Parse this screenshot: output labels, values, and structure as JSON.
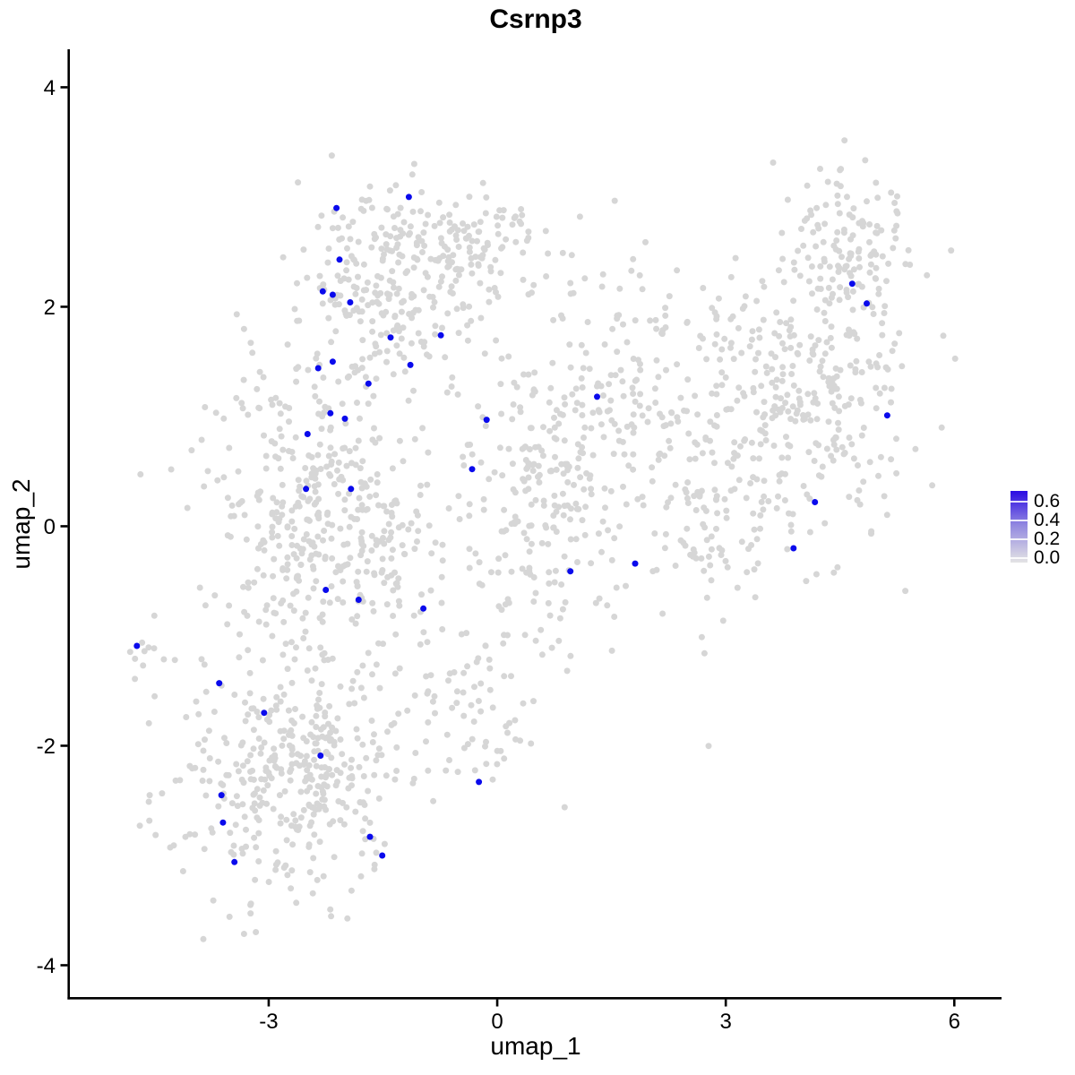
{
  "chart_data": {
    "type": "scatter",
    "title": "Csrnp3",
    "xlabel": "umap_1",
    "ylabel": "umap_2",
    "xlim": [
      -5.61,
      6.62
    ],
    "ylim": [
      -4.29,
      4.33
    ],
    "x_ticks": [
      -3,
      0,
      3,
      6
    ],
    "y_ticks": [
      -4,
      -2,
      0,
      2,
      4
    ],
    "grid": false,
    "legend": {
      "position": "right",
      "labels": [
        "0.6",
        "0.4",
        "0.2",
        "0.0"
      ],
      "values": [
        0.6,
        0.4,
        0.2,
        0.0
      ],
      "gradient_high": "#2B0BE3",
      "gradient_mid": "#9187E0",
      "gradient_low": "#E4E4E4"
    },
    "style": {
      "point_radius": 3.5,
      "gray_color": "#D6D6D6",
      "blue_color": "#0A0AEC",
      "axis_color": "#000000"
    },
    "series": [
      {
        "name": "expressing-cells",
        "color": "#0A0AEC",
        "points": [
          [
            -1.16,
            3.0
          ],
          [
            -2.11,
            2.9
          ],
          [
            -2.07,
            2.43
          ],
          [
            -2.29,
            2.14
          ],
          [
            -2.16,
            2.11
          ],
          [
            -1.93,
            2.04
          ],
          [
            -1.4,
            1.72
          ],
          [
            -0.74,
            1.74
          ],
          [
            -2.16,
            1.5
          ],
          [
            -2.35,
            1.44
          ],
          [
            -1.14,
            1.47
          ],
          [
            -1.69,
            1.3
          ],
          [
            -2.19,
            1.03
          ],
          [
            -2.0,
            0.98
          ],
          [
            -2.49,
            0.84
          ],
          [
            -0.14,
            0.97
          ],
          [
            -0.33,
            0.52
          ],
          [
            -2.51,
            0.34
          ],
          [
            -1.92,
            0.34
          ],
          [
            -2.25,
            -0.58
          ],
          [
            -1.82,
            -0.67
          ],
          [
            -0.97,
            -0.75
          ],
          [
            1.31,
            1.18
          ],
          [
            0.96,
            -0.41
          ],
          [
            1.81,
            -0.34
          ],
          [
            4.66,
            2.21
          ],
          [
            4.85,
            2.03
          ],
          [
            5.12,
            1.01
          ],
          [
            4.17,
            0.22
          ],
          [
            3.89,
            -0.2
          ],
          [
            -4.73,
            -1.09
          ],
          [
            -3.65,
            -1.43
          ],
          [
            -3.06,
            -1.7
          ],
          [
            -2.32,
            -2.09
          ],
          [
            -3.62,
            -2.45
          ],
          [
            -3.6,
            -2.7
          ],
          [
            -1.67,
            -2.83
          ],
          [
            -1.51,
            -3.0
          ],
          [
            -3.45,
            -3.06
          ],
          [
            -0.24,
            -2.33
          ]
        ]
      },
      {
        "name": "background-cells",
        "color": "#D6D6D6",
        "cluster_spec": {
          "seed": 20240607,
          "clusters": [
            {
              "cx": -2.9,
              "cy": -2.35,
              "sx": 0.72,
              "sy": 0.55,
              "n": 280
            },
            {
              "cx": -2.2,
              "cy": -2.0,
              "sx": 0.5,
              "sy": 0.5,
              "n": 110
            },
            {
              "cx": -4.65,
              "cy": -1.22,
              "sx": 0.12,
              "sy": 0.14,
              "n": 9
            },
            {
              "cx": -2.6,
              "cy": 0.2,
              "sx": 0.62,
              "sy": 0.7,
              "n": 300
            },
            {
              "cx": -1.6,
              "cy": -0.1,
              "sx": 0.5,
              "sy": 0.6,
              "n": 130
            },
            {
              "cx": -1.5,
              "cy": 2.1,
              "sx": 0.6,
              "sy": 0.42,
              "n": 190
            },
            {
              "cx": -0.4,
              "cy": 2.5,
              "sx": 0.55,
              "sy": 0.33,
              "n": 105
            },
            {
              "cx": 0.4,
              "cy": 0.3,
              "sx": 0.55,
              "sy": 0.8,
              "n": 170
            },
            {
              "cx": 1.1,
              "cy": 0.6,
              "sx": 0.6,
              "sy": 0.8,
              "n": 110
            },
            {
              "cx": 1.8,
              "cy": 1.4,
              "sx": 0.6,
              "sy": 0.55,
              "n": 85
            },
            {
              "cx": 2.7,
              "cy": 0.3,
              "sx": 0.5,
              "sy": 0.65,
              "n": 110
            },
            {
              "cx": 3.3,
              "cy": 1.2,
              "sx": 0.45,
              "sy": 0.6,
              "n": 85
            },
            {
              "cx": 4.3,
              "cy": 1.2,
              "sx": 0.55,
              "sy": 0.75,
              "n": 240
            },
            {
              "cx": 4.6,
              "cy": 2.55,
              "sx": 0.38,
              "sy": 0.3,
              "n": 105
            },
            {
              "cx": -0.35,
              "cy": -1.6,
              "sx": 0.45,
              "sy": 0.5,
              "n": 65
            },
            {
              "cx": -1.3,
              "cy": 2.75,
              "sx": 0.5,
              "sy": 0.2,
              "n": 40
            }
          ]
        }
      }
    ]
  }
}
